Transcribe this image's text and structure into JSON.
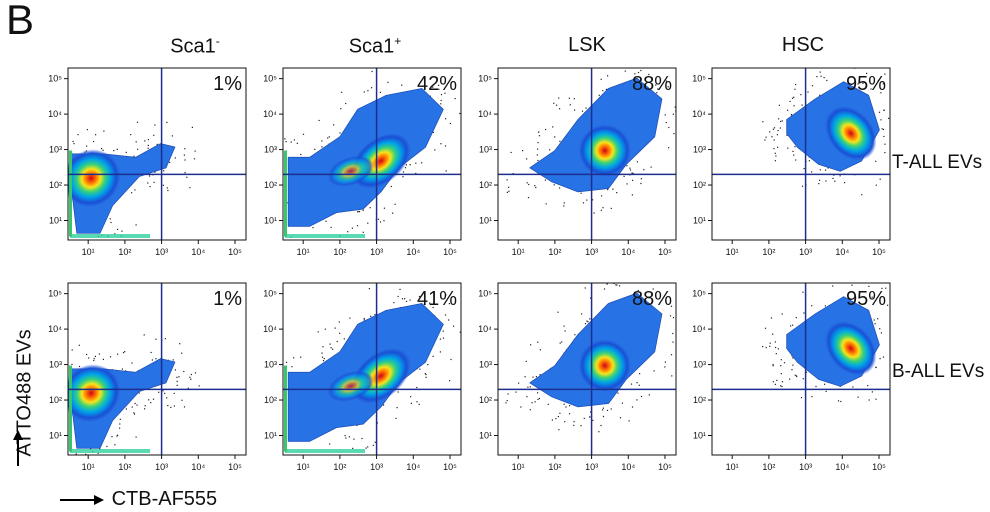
{
  "panel_label": "B",
  "columns": [
    {
      "title": "Sca1",
      "sup": "-"
    },
    {
      "title": "Sca1",
      "sup": "+"
    },
    {
      "title": "LSK",
      "sup": ""
    },
    {
      "title": "HSC",
      "sup": ""
    }
  ],
  "rows": [
    {
      "label": "T-ALL EVs"
    },
    {
      "label": "B-ALL EVs"
    }
  ],
  "ylabel": "ATTO488 EVs",
  "xlabel": "CTB-AF555",
  "chart_data": {
    "type": "heatmap",
    "x_axis": {
      "label": "CTB-AF555",
      "scale": "log",
      "ticks": [
        "10¹",
        "10²",
        "10³",
        "10⁴",
        "10⁵"
      ]
    },
    "y_axis": {
      "label": "ATTO488 EVs",
      "scale": "log",
      "ticks": [
        "10¹",
        "10²",
        "10³",
        "10⁴",
        "10⁵"
      ]
    },
    "gate": {
      "x": 1000,
      "y": 200
    },
    "panels": [
      {
        "row": "T-ALL EVs",
        "column": "Sca1-",
        "percent": "1%"
      },
      {
        "row": "T-ALL EVs",
        "column": "Sca1+",
        "percent": "42%"
      },
      {
        "row": "T-ALL EVs",
        "column": "LSK",
        "percent": "88%"
      },
      {
        "row": "T-ALL EVs",
        "column": "HSC",
        "percent": "95%"
      },
      {
        "row": "B-ALL EVs",
        "column": "Sca1-",
        "percent": "1%"
      },
      {
        "row": "B-ALL EVs",
        "column": "Sca1+",
        "percent": "41%"
      },
      {
        "row": "B-ALL EVs",
        "column": "LSK",
        "percent": "88%"
      },
      {
        "row": "B-ALL EVs",
        "column": "HSC",
        "percent": "95%"
      }
    ]
  }
}
